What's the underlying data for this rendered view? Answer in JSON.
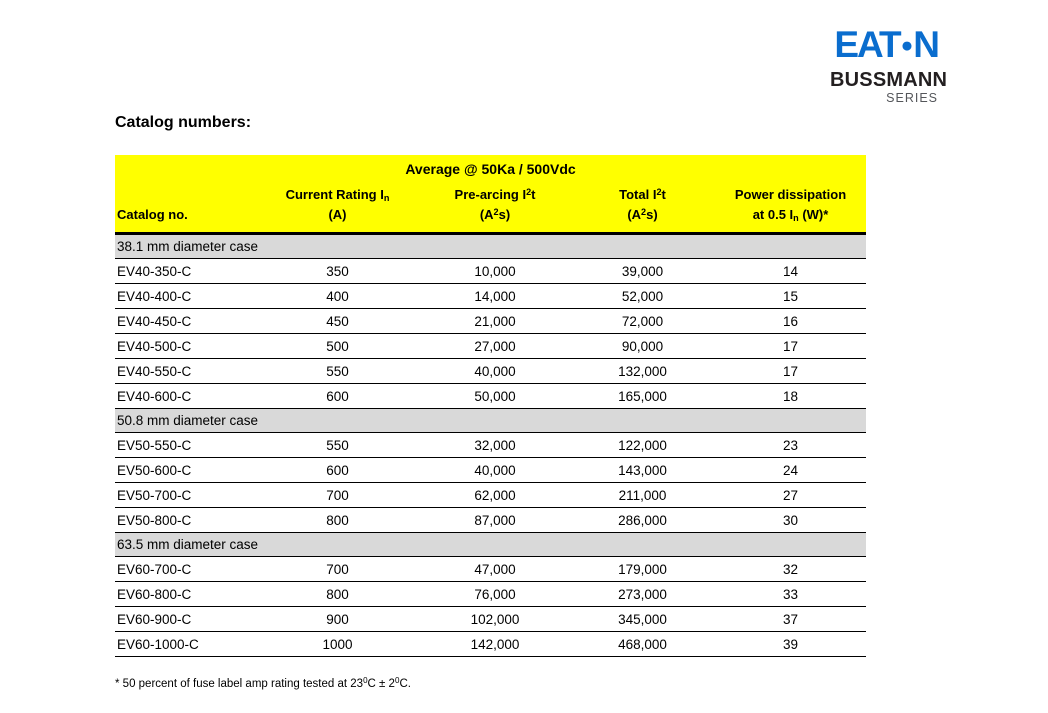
{
  "logo": {
    "brand_pre": "EAT",
    "brand_dot": "●",
    "brand_post": "N",
    "brand_color": "#0a6dce",
    "line1": "BUSSMANN",
    "line2": "SERIES"
  },
  "page": {
    "heading": "Catalog numbers:",
    "footnote": "* 50 percent of fuse label amp rating tested at 23^0^C ± 2^0^C."
  },
  "table": {
    "banner": "Average @ 50Ka / 500Vdc",
    "colors": {
      "header_bg": "#ffff00",
      "section_bg": "#d9d9d9",
      "border": "#000000"
    },
    "columns": [
      {
        "line1": "Catalog no.",
        "line2": ""
      },
      {
        "line1": "Current Rating I~n~",
        "line2": "(A)"
      },
      {
        "line1": "Pre-arcing I^2^t",
        "line2": "(A^2^s)"
      },
      {
        "line1": "Total I^2^t",
        "line2": "(A^2^s)"
      },
      {
        "line1": "Power dissipation",
        "line2": "at 0.5 I~n~ (W)*"
      }
    ],
    "sections": [
      {
        "label": "38.1 mm diameter case",
        "rows": [
          [
            "EV40-350-C",
            "350",
            "10,000",
            "39,000",
            "14"
          ],
          [
            "EV40-400-C",
            "400",
            "14,000",
            "52,000",
            "15"
          ],
          [
            "EV40-450-C",
            "450",
            "21,000",
            "72,000",
            "16"
          ],
          [
            "EV40-500-C",
            "500",
            "27,000",
            "90,000",
            "17"
          ],
          [
            "EV40-550-C",
            "550",
            "40,000",
            "132,000",
            "17"
          ],
          [
            "EV40-600-C",
            "600",
            "50,000",
            "165,000",
            "18"
          ]
        ]
      },
      {
        "label": "50.8 mm diameter case",
        "rows": [
          [
            "EV50-550-C",
            "550",
            "32,000",
            "122,000",
            "23"
          ],
          [
            "EV50-600-C",
            "600",
            "40,000",
            "143,000",
            "24"
          ],
          [
            "EV50-700-C",
            "700",
            "62,000",
            "211,000",
            "27"
          ],
          [
            "EV50-800-C",
            "800",
            "87,000",
            "286,000",
            "30"
          ]
        ]
      },
      {
        "label": "63.5 mm diameter case",
        "rows": [
          [
            "EV60-700-C",
            "700",
            "47,000",
            "179,000",
            "32"
          ],
          [
            "EV60-800-C",
            "800",
            "76,000",
            "273,000",
            "33"
          ],
          [
            "EV60-900-C",
            "900",
            "102,000",
            "345,000",
            "37"
          ],
          [
            "EV60-1000-C",
            "1000",
            "142,000",
            "468,000",
            "39"
          ]
        ]
      }
    ]
  }
}
